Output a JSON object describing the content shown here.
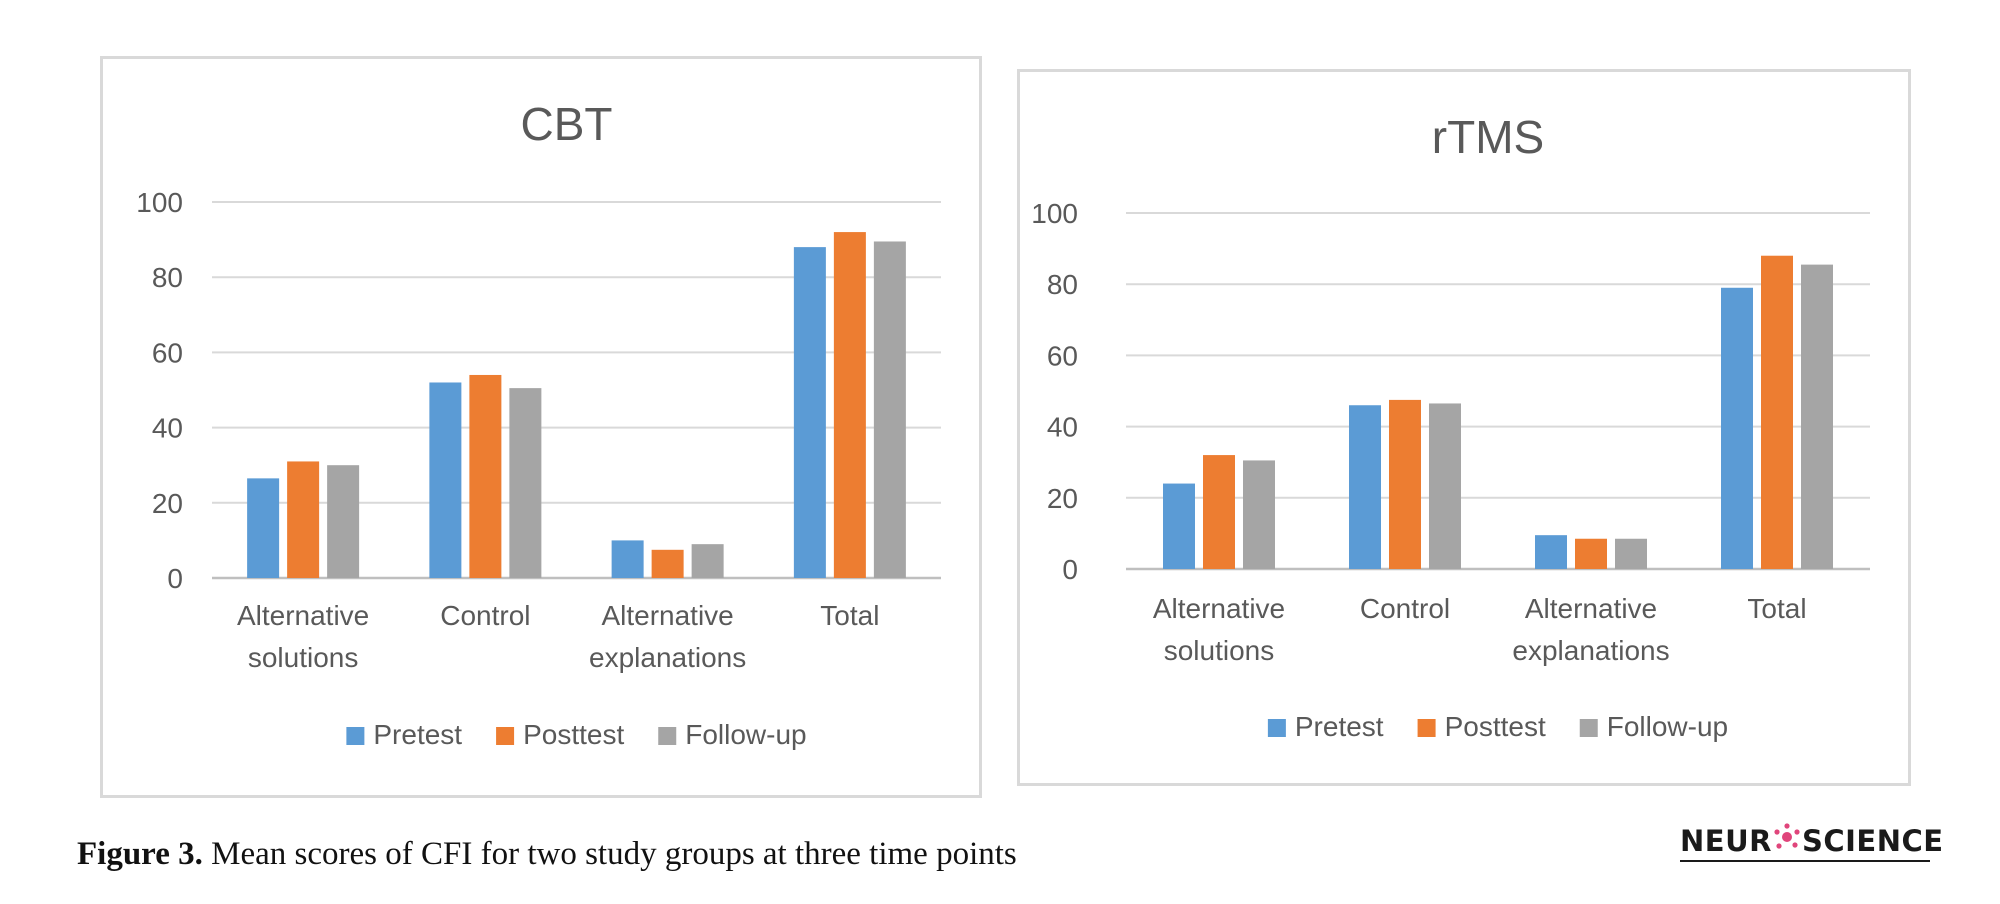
{
  "chart_data": [
    {
      "type": "bar",
      "title": "CBT",
      "categories": [
        [
          "Alternative",
          "solutions"
        ],
        [
          "Control"
        ],
        [
          "Alternative",
          "explanations"
        ],
        [
          "Total"
        ]
      ],
      "series": [
        {
          "name": "Pretest",
          "color": "#5b9bd5",
          "values": [
            26.5,
            52,
            10,
            88
          ]
        },
        {
          "name": "Posttest",
          "color": "#ed7d31",
          "values": [
            31,
            54,
            7.5,
            92
          ]
        },
        {
          "name": "Follow-up",
          "color": "#a5a5a5",
          "values": [
            30,
            50.5,
            9,
            89.5
          ]
        }
      ],
      "yticks": [
        0,
        20,
        40,
        60,
        80,
        100
      ],
      "ylim": [
        0,
        100
      ],
      "xlabel": "",
      "ylabel": "",
      "grid": true,
      "legend": "bottom"
    },
    {
      "type": "bar",
      "title": "rTMS",
      "categories": [
        [
          "Alternative",
          "solutions"
        ],
        [
          "Control"
        ],
        [
          "Alternative",
          "explanations"
        ],
        [
          "Total"
        ]
      ],
      "series": [
        {
          "name": "Pretest",
          "color": "#5b9bd5",
          "values": [
            24,
            46,
            9.5,
            79
          ]
        },
        {
          "name": "Posttest",
          "color": "#ed7d31",
          "values": [
            32,
            47.5,
            8.5,
            88
          ]
        },
        {
          "name": "Follow-up",
          "color": "#a5a5a5",
          "values": [
            30.5,
            46.5,
            8.5,
            85.5
          ]
        }
      ],
      "yticks": [
        0,
        20,
        40,
        60,
        80,
        100
      ],
      "ylim": [
        0,
        100
      ],
      "xlabel": "",
      "ylabel": "",
      "grid": true,
      "legend": "bottom"
    }
  ],
  "caption": {
    "label": "Figure 3.",
    "text": " Mean scores of CFI for two study groups at three time points"
  },
  "logo": {
    "left": "NEUR",
    "right": "SCIENCE",
    "mark_color": "#e0457b"
  }
}
